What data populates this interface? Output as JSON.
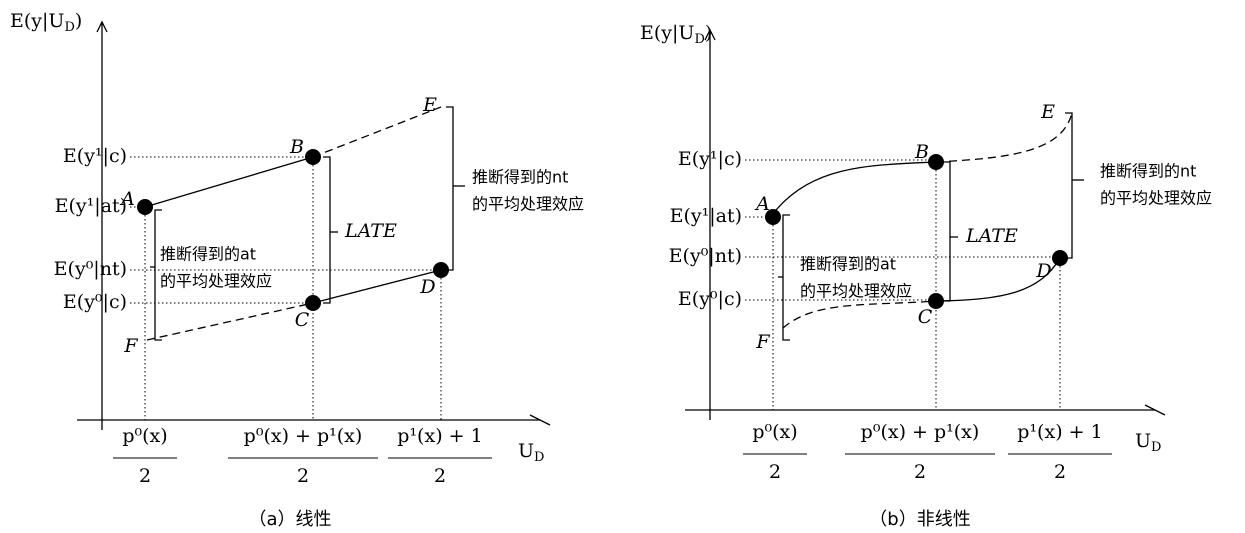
{
  "panels": [
    {
      "y_title": {
        "main": "E(y|U",
        "sub": "D",
        "close": ")"
      },
      "x_title": {
        "main": "U",
        "sub": "D"
      },
      "y_labels": [
        "E(y¹|c)",
        "E(y¹|at)",
        "E(y⁰|nt)",
        "E(y⁰|c)"
      ],
      "x_labels": [
        {
          "num": "p⁰(x)",
          "den": "2"
        },
        {
          "num": "p⁰(x) + p¹(x)",
          "den": "2"
        },
        {
          "num": "p¹(x) + 1",
          "den": "2"
        }
      ],
      "points": [
        "A",
        "B",
        "C",
        "D",
        "E",
        "F"
      ],
      "late": "LATE",
      "at_note": [
        "推断得到的at",
        "的平均处理效应"
      ],
      "nt_note": [
        "推断得到的nt",
        "的平均处理效应"
      ],
      "caption": "（a）线性"
    },
    {
      "y_title": {
        "main": "E(y|U",
        "sub": "D",
        "close": ")"
      },
      "x_title": {
        "main": "U",
        "sub": "D"
      },
      "y_labels": [
        "E(y¹|c)",
        "E(y¹|at)",
        "E(y⁰|nt)",
        "E(y⁰|c)"
      ],
      "x_labels": [
        {
          "num": "p⁰(x)",
          "den": "2"
        },
        {
          "num": "p⁰(x) + p¹(x)",
          "den": "2"
        },
        {
          "num": "p¹(x) + 1",
          "den": "2"
        }
      ],
      "points": [
        "A",
        "B",
        "C",
        "D",
        "E",
        "F"
      ],
      "late": "LATE",
      "at_note": [
        "推断得到的at",
        "的平均处理效应"
      ],
      "nt_note": [
        "推断得到的nt",
        "的平均处理效应"
      ],
      "caption": "（b）非线性"
    }
  ]
}
